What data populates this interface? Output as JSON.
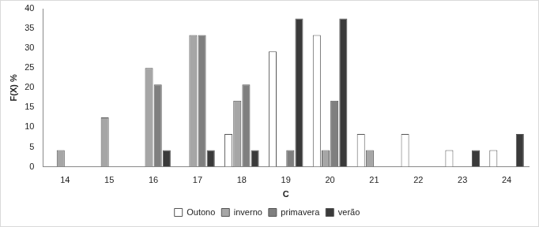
{
  "chart_data": {
    "type": "bar",
    "x_label": "C",
    "y_label": "F(X) %",
    "categories": [
      "14",
      "15",
      "16",
      "17",
      "18",
      "19",
      "20",
      "21",
      "22",
      "23",
      "24"
    ],
    "series": [
      {
        "name": "Outono",
        "color": "#ffffff",
        "values": [
          0,
          0,
          0,
          0,
          8.3,
          29.2,
          33.3,
          8.3,
          8.3,
          4.2,
          4.2
        ]
      },
      {
        "name": "inverno",
        "color": "#a6a6a6",
        "values": [
          4.2,
          12.5,
          25,
          33.3,
          16.7,
          0,
          4.2,
          4.2,
          0,
          0,
          0
        ]
      },
      {
        "name": "primavera",
        "color": "#7f7f7f",
        "values": [
          0,
          0,
          20.8,
          33.3,
          20.8,
          4.2,
          16.7,
          0,
          0,
          0,
          0
        ]
      },
      {
        "name": "verão",
        "color": "#3a3a3a",
        "values": [
          0,
          0,
          4.2,
          4.2,
          4.2,
          37.5,
          37.5,
          0,
          0,
          4.2,
          8.3
        ]
      }
    ],
    "ylim": [
      0,
      40
    ],
    "yticks": [
      0,
      5,
      10,
      15,
      20,
      25,
      30,
      35,
      40
    ],
    "grid": false,
    "legend": "bottom"
  }
}
